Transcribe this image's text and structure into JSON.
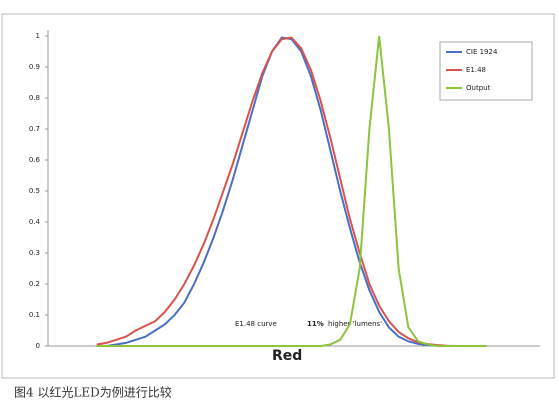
{
  "chart_data": {
    "type": "line",
    "x": [
      10,
      12,
      14,
      16,
      18,
      20,
      22,
      24,
      26,
      28,
      30,
      32,
      34,
      36,
      38,
      40,
      42,
      44,
      46,
      48,
      50,
      52,
      54,
      56,
      58,
      60,
      62,
      64,
      66,
      68,
      70,
      72,
      74,
      76,
      78,
      80,
      82,
      84,
      86,
      88,
      90
    ],
    "xlim": [
      0,
      100
    ],
    "ylim": [
      0,
      1
    ],
    "yticks": [
      0,
      0.1,
      0.2,
      0.3,
      0.4,
      0.5,
      0.6,
      0.7,
      0.8,
      0.9,
      1
    ],
    "legend": "upper right",
    "series": [
      {
        "name": "CIE 1924",
        "color": "#4a6fc4",
        "values": [
          0,
          0,
          0.005,
          0.01,
          0.02,
          0.03,
          0.05,
          0.07,
          0.1,
          0.14,
          0.2,
          0.27,
          0.35,
          0.44,
          0.54,
          0.65,
          0.76,
          0.87,
          0.95,
          0.995,
          0.99,
          0.95,
          0.87,
          0.76,
          0.63,
          0.5,
          0.38,
          0.27,
          0.18,
          0.11,
          0.06,
          0.03,
          0.015,
          0.007,
          0.003,
          0.001,
          0,
          0,
          0,
          0,
          0
        ]
      },
      {
        "name": "E1.48",
        "color": "#d9534f",
        "values": [
          0.005,
          0.01,
          0.02,
          0.03,
          0.05,
          0.065,
          0.08,
          0.11,
          0.15,
          0.2,
          0.26,
          0.33,
          0.41,
          0.5,
          0.59,
          0.69,
          0.79,
          0.88,
          0.95,
          0.99,
          0.995,
          0.96,
          0.89,
          0.79,
          0.67,
          0.54,
          0.41,
          0.3,
          0.2,
          0.13,
          0.08,
          0.045,
          0.025,
          0.012,
          0.006,
          0.003,
          0.001,
          0,
          0,
          0,
          0
        ]
      },
      {
        "name": "Output",
        "color": "#8cc43c",
        "values": [
          0,
          0,
          0,
          0,
          0,
          0,
          0,
          0,
          0,
          0,
          0,
          0,
          0,
          0,
          0,
          0,
          0,
          0,
          0,
          0,
          0,
          0,
          0,
          0,
          0.005,
          0.02,
          0.07,
          0.25,
          0.7,
          1,
          0.7,
          0.25,
          0.06,
          0.015,
          0.005,
          0,
          0,
          0,
          0,
          0,
          0
        ]
      }
    ],
    "annotations": [
      "E1.48 curve",
      "11%",
      "higher 'lumens'",
      "Red"
    ]
  },
  "caption": "图4 以红光LED为例进行比较"
}
